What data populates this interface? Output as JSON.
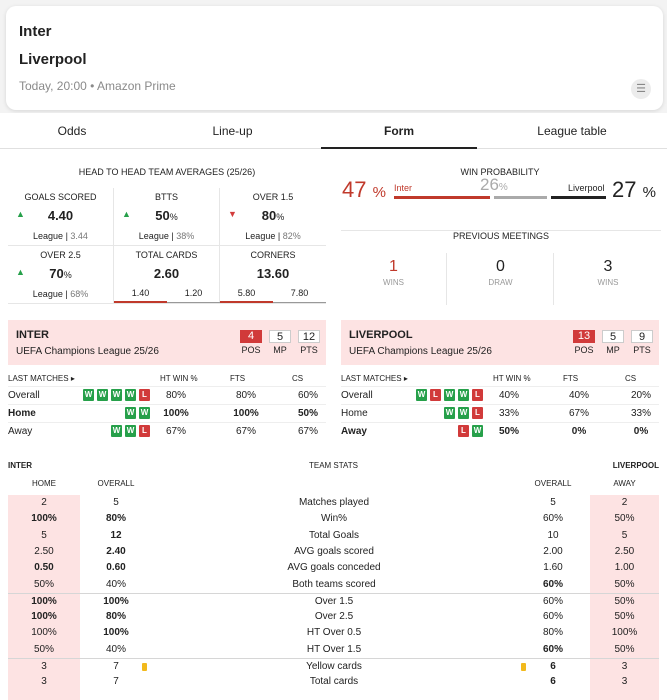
{
  "match": {
    "home": "Inter",
    "away": "Liverpool",
    "meta": "Today, 20:00 • Amazon Prime"
  },
  "tabs": [
    "Odds",
    "Line-up",
    "Form",
    "League table"
  ],
  "h2h": {
    "title": "HEAD TO HEAD TEAM AVERAGES (25/26)",
    "cells": [
      {
        "label": "GOALS SCORED",
        "value": "4.40",
        "suffix": "",
        "arrow": "up",
        "sub_label": "League",
        "sub_value": "3.44"
      },
      {
        "label": "BTTS",
        "value": "50",
        "suffix": "%",
        "arrow": "up",
        "sub_label": "League",
        "sub_value": "38%"
      },
      {
        "label": "OVER 1.5",
        "value": "80",
        "suffix": "%",
        "arrow": "down",
        "sub_label": "League",
        "sub_value": "82%"
      },
      {
        "label": "OVER 2.5",
        "value": "70",
        "suffix": "%",
        "arrow": "up",
        "sub_label": "League",
        "sub_value": "68%"
      },
      {
        "label": "TOTAL CARDS",
        "value": "2.60",
        "suffix": "",
        "arrow": "",
        "split": [
          "1.40",
          "1.20"
        ]
      },
      {
        "label": "CORNERS",
        "value": "13.60",
        "suffix": "",
        "arrow": "",
        "split": [
          "5.80",
          "7.80"
        ]
      }
    ]
  },
  "win_prob": {
    "title": "WIN PROBABILITY",
    "home_pct": "47",
    "home_name": "Inter",
    "draw_pct": "26",
    "away_name": "Liverpool",
    "away_pct": "27",
    "pct_sign": "%",
    "home_frac": 0.47,
    "draw_frac": 0.26,
    "away_frac": 0.27
  },
  "previous": {
    "title": "PREVIOUS MEETINGS",
    "items": [
      {
        "n": "1",
        "label": "WINS",
        "color": "#c0392b"
      },
      {
        "n": "0",
        "label": "DRAW",
        "color": "#222"
      },
      {
        "n": "3",
        "label": "WINS",
        "color": "#222"
      }
    ]
  },
  "teams": [
    {
      "name": "INTER",
      "comp": "UEFA Champions League 25/26",
      "pos": "4",
      "mp": "5",
      "pts": "12"
    },
    {
      "name": "LIVERPOOL",
      "comp": "UEFA Champions League 25/26",
      "pos": "13",
      "mp": "5",
      "pts": "9"
    }
  ],
  "stat_labels": {
    "pos": "POS",
    "mp": "MP",
    "pts": "PTS"
  },
  "last_matches": {
    "headers": [
      "LAST MATCHES ▸",
      "HT WIN %",
      "FTS",
      "CS"
    ],
    "home": [
      {
        "label": "Overall",
        "bold": false,
        "form": [
          "W",
          "W",
          "W",
          "W",
          "L"
        ],
        "ht": "80%",
        "fts": "80%",
        "cs": "60%"
      },
      {
        "label": "Home",
        "bold": true,
        "form": [
          "W",
          "W"
        ],
        "ht": "100%",
        "fts": "100%",
        "cs": "50%"
      },
      {
        "label": "Away",
        "bold": false,
        "form": [
          "W",
          "W",
          "L"
        ],
        "ht": "67%",
        "fts": "67%",
        "cs": "67%"
      }
    ],
    "away": [
      {
        "label": "Overall",
        "bold": false,
        "form": [
          "W",
          "L",
          "W",
          "W",
          "L"
        ],
        "ht": "40%",
        "fts": "40%",
        "cs": "20%"
      },
      {
        "label": "Home",
        "bold": false,
        "form": [
          "W",
          "W",
          "L"
        ],
        "ht": "33%",
        "fts": "67%",
        "cs": "33%"
      },
      {
        "label": "Away",
        "bold": true,
        "form": [
          "L",
          "W"
        ],
        "ht": "50%",
        "fts": "0%",
        "cs": "0%"
      }
    ]
  },
  "team_stats": {
    "home_team": "INTER",
    "title": "TEAM STATS",
    "away_team": "LIVERPOOL",
    "sub": [
      "HOME",
      "OVERALL",
      "OVERALL",
      "AWAY"
    ],
    "rows": [
      {
        "h": "2",
        "ho": "5",
        "label": "Matches played",
        "ao": "5",
        "a": "2",
        "b": []
      },
      {
        "h": "100%",
        "ho": "80%",
        "label": "Win%",
        "ao": "60%",
        "a": "50%",
        "b": [
          "h",
          "ho"
        ]
      },
      {
        "h": "5",
        "ho": "12",
        "label": "Total Goals",
        "ao": "10",
        "a": "5",
        "b": [
          "ho"
        ]
      },
      {
        "h": "2.50",
        "ho": "2.40",
        "label": "AVG goals scored",
        "ao": "2.00",
        "a": "2.50",
        "b": [
          "ho"
        ]
      },
      {
        "h": "0.50",
        "ho": "0.60",
        "label": "AVG goals conceded",
        "ao": "1.60",
        "a": "1.00",
        "b": [
          "h",
          "ho"
        ]
      },
      {
        "h": "50%",
        "ho": "40%",
        "label": "Both teams scored",
        "ao": "60%",
        "a": "50%",
        "b": [
          "ao"
        ]
      },
      {
        "h": "100%",
        "ho": "100%",
        "label": "Over 1.5",
        "ao": "60%",
        "a": "50%",
        "b": [
          "h",
          "ho"
        ],
        "sep": true
      },
      {
        "h": "100%",
        "ho": "80%",
        "label": "Over 2.5",
        "ao": "60%",
        "a": "50%",
        "b": [
          "h",
          "ho"
        ]
      },
      {
        "h": "100%",
        "ho": "100%",
        "label": "HT Over 0.5",
        "ao": "80%",
        "a": "100%",
        "b": [
          "ho"
        ]
      },
      {
        "h": "50%",
        "ho": "40%",
        "label": "HT Over 1.5",
        "ao": "60%",
        "a": "50%",
        "b": [
          "ao"
        ]
      },
      {
        "h": "3",
        "ho": "7",
        "label": "Yellow cards",
        "ao": "6",
        "a": "3",
        "b": [
          "ao"
        ],
        "sep": true,
        "yc": true
      },
      {
        "h": "3",
        "ho": "7",
        "label": "Total cards",
        "ao": "6",
        "a": "3",
        "b": [
          "ao"
        ]
      }
    ]
  }
}
